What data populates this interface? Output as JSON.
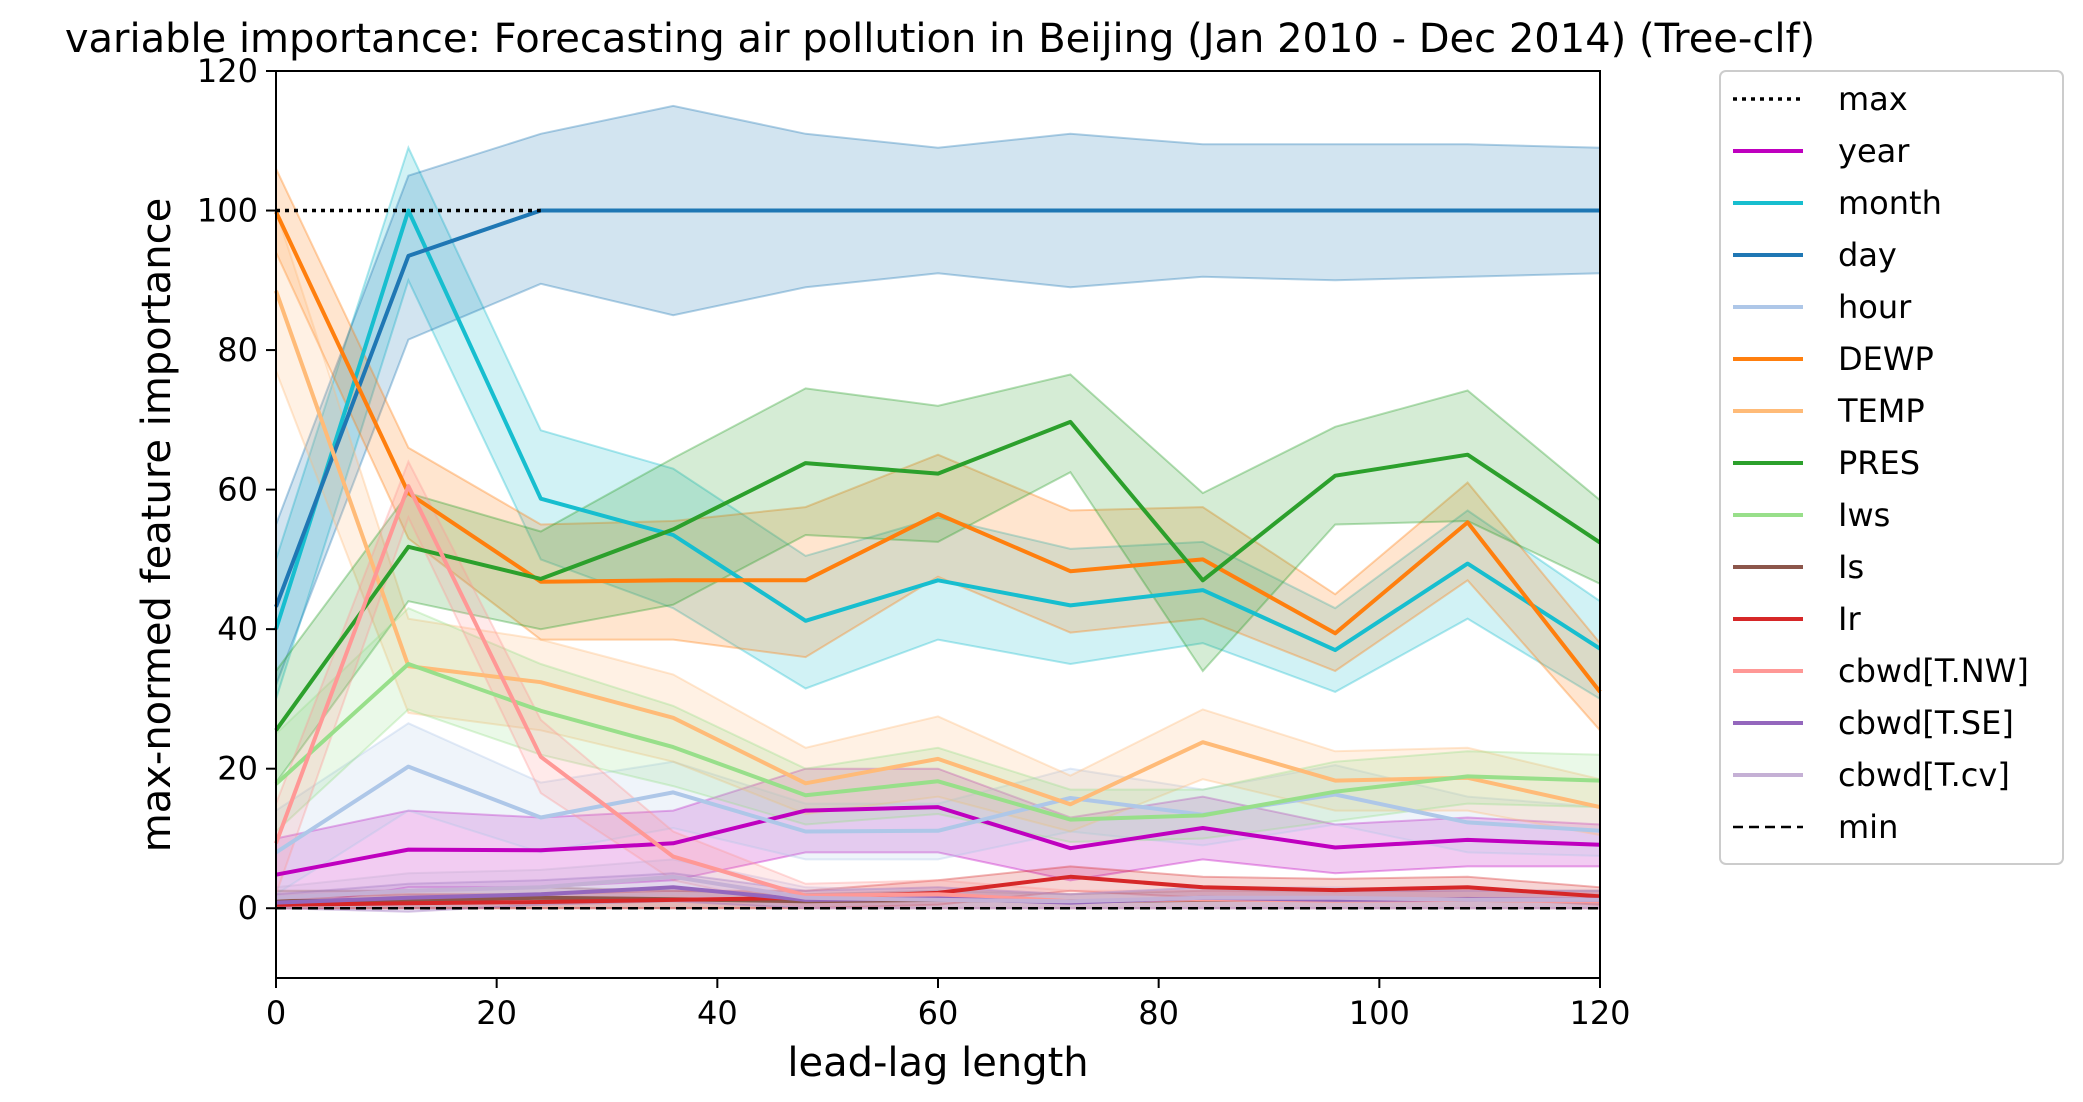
{
  "chart_data": {
    "type": "line",
    "title": "variable importance: Forecasting air pollution in Beijing (Jan 2010 - Dec 2014) (Tree-clf)",
    "xlabel": "lead-lag length",
    "ylabel": "max-normed feature importance",
    "xlim": [
      0,
      120
    ],
    "ylim": [
      -10,
      120
    ],
    "xticks": [
      0,
      20,
      40,
      60,
      80,
      100,
      120
    ],
    "yticks": [
      0,
      20,
      40,
      60,
      80,
      100,
      120
    ],
    "grid": false,
    "legend_position": "outside right",
    "x": [
      0,
      12,
      24,
      36,
      48,
      60,
      72,
      84,
      96,
      108,
      120
    ],
    "max": {
      "name": "max",
      "x": [
        0,
        12,
        24
      ],
      "values": [
        100,
        100,
        100
      ],
      "color": "#000000",
      "dash": "dotted"
    },
    "min": {
      "name": "min",
      "x": [
        0,
        120
      ],
      "values": [
        0,
        0
      ],
      "color": "#000000",
      "dash": "dashed"
    },
    "series": [
      {
        "name": "year",
        "color": "#bf00bf",
        "values": [
          4.8,
          8.4,
          8.3,
          9.3,
          14.0,
          14.5,
          8.6,
          11.5,
          8.7,
          9.8,
          9.1
        ],
        "lower": [
          0,
          3,
          3,
          4,
          8,
          8,
          4,
          7,
          5,
          6,
          6
        ],
        "upper": [
          10,
          14,
          13,
          14,
          20,
          20,
          13,
          16,
          12,
          13,
          12
        ]
      },
      {
        "name": "month",
        "color": "#17becf",
        "values": [
          40,
          100,
          58.7,
          53.5,
          41.2,
          47.0,
          43.4,
          45.6,
          37.0,
          49.4,
          37.2
        ],
        "lower": [
          30,
          90,
          50,
          43,
          31.5,
          38.5,
          35,
          38,
          31,
          41.5,
          30
        ],
        "upper": [
          50,
          109,
          68.5,
          63,
          50.5,
          56,
          51.5,
          52.5,
          43,
          57,
          44
        ]
      },
      {
        "name": "day",
        "color": "#1f77b4",
        "values": [
          43.2,
          93.5,
          100,
          100,
          100,
          100,
          100,
          100,
          100,
          100,
          100
        ],
        "lower": [
          32,
          81.5,
          89.5,
          85,
          89,
          91,
          89,
          90.5,
          90,
          90.5,
          91
        ],
        "upper": [
          55,
          105,
          111,
          115,
          111,
          109,
          111,
          109.5,
          109.5,
          109.5,
          109
        ]
      },
      {
        "name": "hour",
        "color": "#aec7e8",
        "values": [
          8.0,
          20.3,
          13.0,
          16.6,
          11.0,
          11.1,
          15.8,
          13.4,
          16.3,
          12.3,
          11.1
        ],
        "lower": [
          2,
          14,
          8,
          11.5,
          7,
          7,
          11,
          9,
          12,
          8,
          7.5
        ],
        "upper": [
          14,
          26.5,
          18,
          21,
          15,
          15,
          20,
          17,
          20.5,
          16,
          14.5
        ]
      },
      {
        "name": "DEWP",
        "color": "#ff7f0e",
        "values": [
          99.8,
          59.5,
          46.8,
          47.0,
          47.0,
          56.5,
          48.3,
          50.0,
          39.4,
          55.3,
          31.0
        ],
        "lower": [
          94,
          53,
          38.5,
          38.5,
          36,
          47.5,
          39.5,
          41.5,
          34,
          47,
          25.5
        ],
        "upper": [
          106,
          66,
          55,
          55.5,
          57.5,
          65,
          57,
          57.5,
          45,
          61,
          38
        ]
      },
      {
        "name": "TEMP",
        "color": "#ffbb78",
        "values": [
          88.5,
          34.7,
          32.4,
          27.3,
          17.9,
          21.4,
          14.9,
          23.8,
          18.3,
          18.7,
          14.5
        ],
        "lower": [
          77,
          28,
          25.5,
          21,
          13.5,
          16,
          11,
          18.5,
          14,
          14,
          10.5
        ],
        "upper": [
          100,
          41.5,
          38.5,
          33.5,
          23,
          27.5,
          19,
          28.5,
          22.5,
          23,
          18.5
        ]
      },
      {
        "name": "PRES",
        "color": "#2ca02c",
        "values": [
          25.5,
          51.8,
          47.2,
          54.3,
          63.8,
          62.3,
          69.7,
          47.0,
          62.0,
          65.0,
          52.4
        ],
        "lower": [
          18,
          44,
          40,
          43.5,
          53.5,
          52.5,
          62.5,
          34,
          55,
          55.5,
          46.5
        ],
        "upper": [
          34,
          59.5,
          54,
          64.5,
          74.5,
          72,
          76.5,
          59.5,
          69,
          74.2,
          58.5
        ]
      },
      {
        "name": "Iws",
        "color": "#98df8a",
        "values": [
          17.8,
          35.0,
          28.3,
          23.1,
          16.2,
          18.2,
          12.7,
          13.3,
          16.7,
          18.9,
          18.3
        ],
        "lower": [
          11,
          28.5,
          22,
          17.5,
          12,
          13.5,
          9.5,
          10,
          12.5,
          15,
          14.5
        ],
        "upper": [
          25,
          43,
          35,
          29,
          20,
          23,
          17,
          17,
          21,
          22.5,
          22
        ]
      },
      {
        "name": "Is",
        "color": "#8c564b",
        "values": [
          1.0,
          1.2,
          1.5,
          1.3,
          1.0,
          1.2,
          1.0,
          1.2,
          1.3,
          1.2,
          1.1
        ],
        "lower": [
          0,
          0,
          0,
          0,
          0,
          0,
          0,
          0,
          0,
          0,
          0
        ],
        "upper": [
          2.5,
          2.5,
          3,
          2.5,
          2,
          2.5,
          2,
          2.5,
          2.5,
          2.5,
          2.5
        ]
      },
      {
        "name": "Ir",
        "color": "#d62728",
        "values": [
          0.5,
          0.7,
          0.9,
          1.2,
          1.5,
          2.2,
          4.5,
          3.0,
          2.6,
          3.0,
          1.7
        ],
        "lower": [
          0,
          0,
          0,
          0,
          0,
          0.5,
          2.5,
          1.5,
          1.0,
          1.5,
          0.5
        ],
        "upper": [
          1.5,
          2,
          2,
          2.5,
          2.5,
          4,
          6,
          4.5,
          4.2,
          4.5,
          3
        ]
      },
      {
        "name": "cbwd[T.NW]",
        "color": "#ff9896",
        "values": [
          9.3,
          60.5,
          21.7,
          7.4,
          1.8,
          2.0,
          1.0,
          1.3,
          1.1,
          1.2,
          1.0
        ],
        "lower": [
          2,
          56,
          16.5,
          4,
          0,
          0,
          0,
          0,
          0,
          0,
          0
        ],
        "upper": [
          15,
          64,
          27,
          11,
          3.5,
          4,
          2.5,
          2.5,
          2.2,
          2.5,
          2.2
        ]
      },
      {
        "name": "cbwd[T.SE]",
        "color": "#9467bd",
        "values": [
          0.8,
          1.5,
          2.0,
          3.0,
          1.2,
          1.4,
          0.8,
          1.5,
          1.2,
          1.3,
          1.2
        ],
        "lower": [
          0,
          -0.5,
          0.5,
          1,
          0,
          0,
          0,
          0,
          0,
          0,
          0
        ],
        "upper": [
          2,
          3.5,
          4,
          5,
          2.5,
          3,
          2,
          3,
          2.5,
          2.5,
          2.5
        ]
      },
      {
        "name": "cbwd[T.cv]",
        "color": "#c5b0d5",
        "values": [
          1.5,
          2.5,
          3.0,
          4.5,
          1.5,
          1.2,
          1.0,
          1.5,
          1.5,
          1.2,
          1.2
        ],
        "lower": [
          0,
          0.5,
          1,
          2,
          0,
          0,
          0,
          0,
          0,
          0,
          0
        ],
        "upper": [
          3,
          5,
          5.5,
          7,
          3,
          2.5,
          2,
          3,
          3,
          2.5,
          2.5
        ]
      }
    ]
  }
}
